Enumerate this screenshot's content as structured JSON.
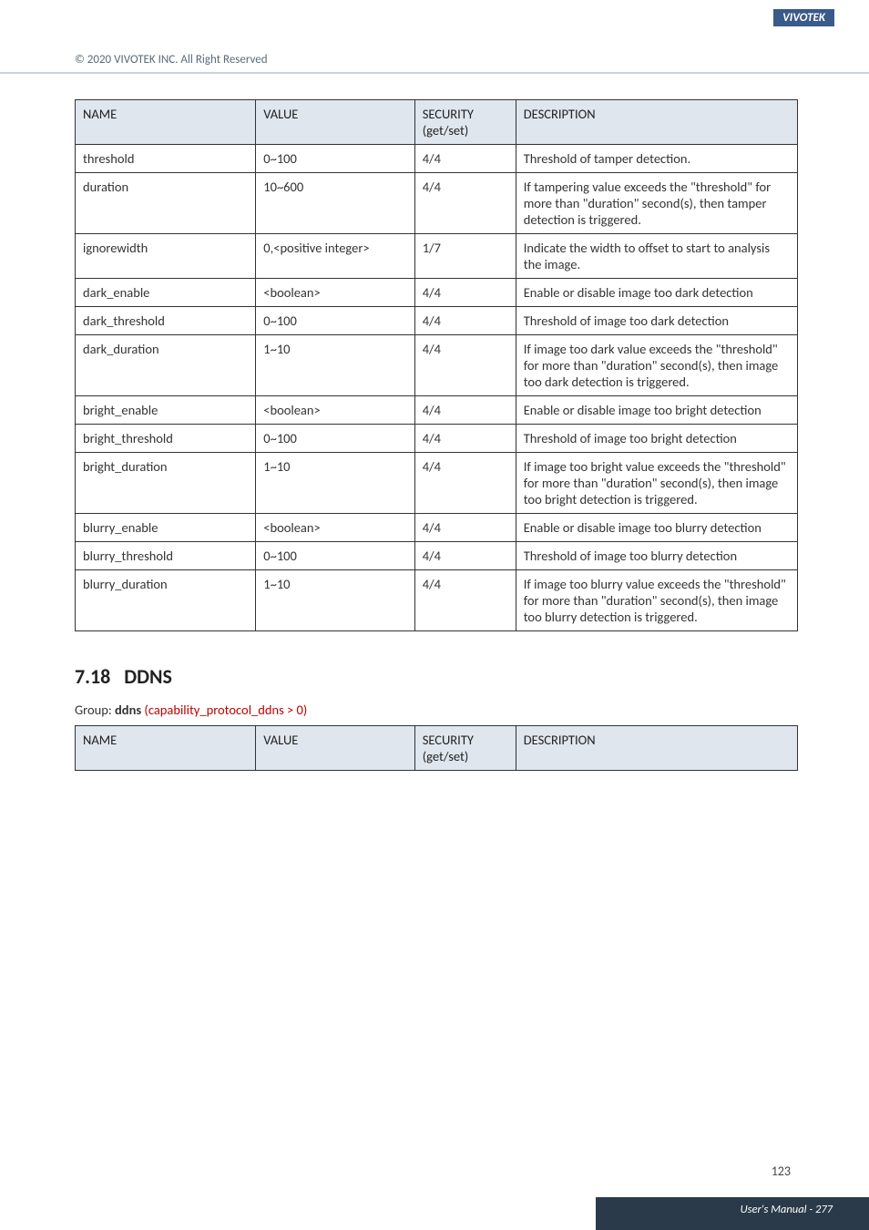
{
  "header": {
    "brand": "VIVOTEK",
    "copyright": "© 2020 VIVOTEK INC. All Right Reserved"
  },
  "table1": {
    "columns": [
      "NAME",
      "VALUE",
      "SECURITY (get/set)",
      "DESCRIPTION"
    ],
    "rows": [
      {
        "name": "threshold",
        "value": "0~100",
        "security": "4/4",
        "desc": "Threshold of tamper detection."
      },
      {
        "name": "duration",
        "value": "10~600",
        "security": "4/4",
        "desc": "If tampering value exceeds the \"threshold\" for more than \"duration\" second(s), then tamper detection is triggered."
      },
      {
        "name": "ignorewidth",
        "value": "0,<positive integer>",
        "security": "1/7",
        "desc": "Indicate the width to offset to start to analysis the image."
      },
      {
        "name": "dark_enable",
        "value": "<boolean>",
        "security": "4/4",
        "desc": "Enable or disable image too dark detection"
      },
      {
        "name": "dark_threshold",
        "value": "0~100",
        "security": "4/4",
        "desc": "Threshold of image too dark detection"
      },
      {
        "name": "dark_duration",
        "value": "1~10",
        "security": "4/4",
        "desc": "If image too dark value exceeds the \"threshold\" for more than \"duration\" second(s), then image too dark detection is triggered."
      },
      {
        "name": "bright_enable",
        "value": "<boolean>",
        "security": "4/4",
        "desc": "Enable or disable image too bright detection"
      },
      {
        "name": "bright_threshold",
        "value": "0~100",
        "security": "4/4",
        "desc": "Threshold of image too bright detection"
      },
      {
        "name": "bright_duration",
        "value": "1~10",
        "security": "4/4",
        "desc": "If image too bright value exceeds the \"threshold\" for more than \"duration\" second(s), then image too bright detection is triggered."
      },
      {
        "name": "blurry_enable",
        "value": "<boolean>",
        "security": "4/4",
        "desc": "Enable or disable image too blurry detection"
      },
      {
        "name": "blurry_threshold",
        "value": "0~100",
        "security": "4/4",
        "desc": "Threshold of image too blurry detection"
      },
      {
        "name": "blurry_duration",
        "value": "1~10",
        "security": "4/4",
        "desc": "If image too blurry value exceeds the \"threshold\" for more than \"duration\" second(s), then image too blurry detection is triggered."
      }
    ]
  },
  "section": {
    "number": "7.18",
    "title": "DDNS",
    "group_prefix": "Group: ",
    "group_name": "ddns",
    "group_cond": " (capability_protocol_ddns > 0)"
  },
  "table2": {
    "columns": [
      "NAME",
      "VALUE",
      "SECURITY (get/set)",
      "DESCRIPTION"
    ]
  },
  "footer": {
    "page_num": "123",
    "manual_page": "User's Manual - 277"
  }
}
